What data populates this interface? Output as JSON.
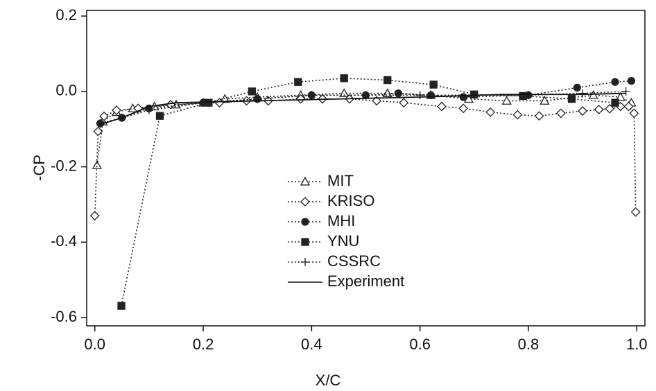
{
  "chart_data": {
    "type": "line",
    "xlabel": "X/C",
    "ylabel": "-CP",
    "xlim": [
      -0.015,
      1.015
    ],
    "ylim": [
      -0.622,
      0.215
    ],
    "xticks": [
      {
        "value": 0,
        "label": "0.0"
      },
      0.2,
      0.4,
      0.6,
      0.8,
      {
        "value": 1,
        "label": "1.0"
      }
    ],
    "yticks": [
      0.2,
      {
        "value": 0,
        "label": "0.0"
      },
      -0.2,
      -0.4,
      -0.6
    ],
    "legend": "center",
    "series": [
      {
        "name": "MIT",
        "color": "#222222",
        "marker": "triangle",
        "dash": "dotted",
        "x": [
          0.004,
          0.015,
          0.04,
          0.07,
          0.11,
          0.15,
          0.2,
          0.24,
          0.3,
          0.38,
          0.46,
          0.54,
          0.62,
          0.69,
          0.76,
          0.83,
          0.92,
          0.97,
          0.99
        ],
        "values": [
          -0.196,
          -0.08,
          -0.055,
          -0.045,
          -0.04,
          -0.035,
          -0.03,
          -0.02,
          -0.015,
          -0.01,
          -0.005,
          -0.005,
          -0.01,
          -0.02,
          -0.025,
          -0.025,
          -0.01,
          -0.015,
          -0.03
        ]
      },
      {
        "name": "KRISO",
        "color": "#222222",
        "marker": "diamond",
        "dash": "dotted",
        "x": [
          0,
          0.006,
          0.017,
          0.04,
          0.08,
          0.14,
          0.23,
          0.28,
          0.32,
          0.38,
          0.42,
          0.47,
          0.52,
          0.57,
          0.64,
          0.68,
          0.73,
          0.78,
          0.82,
          0.86,
          0.9,
          0.93,
          0.95,
          0.97,
          0.985,
          0.995,
          0.998
        ],
        "values": [
          -0.33,
          -0.106,
          -0.066,
          -0.05,
          -0.045,
          -0.035,
          -0.03,
          -0.025,
          -0.025,
          -0.02,
          -0.02,
          -0.02,
          -0.025,
          -0.03,
          -0.04,
          -0.045,
          -0.055,
          -0.062,
          -0.065,
          -0.058,
          -0.052,
          -0.048,
          -0.046,
          -0.04,
          -0.04,
          -0.058,
          -0.32
        ]
      },
      {
        "name": "MHI",
        "color": "#222222",
        "marker": "circle",
        "dash": "dotted",
        "x": [
          0.01,
          0.05,
          0.1,
          0.2,
          0.3,
          0.4,
          0.5,
          0.56,
          0.62,
          0.68,
          0.8,
          0.89,
          0.96,
          0.99
        ],
        "values": [
          -0.085,
          -0.07,
          -0.045,
          -0.03,
          -0.02,
          -0.01,
          -0.01,
          -0.005,
          -0.01,
          -0.015,
          -0.01,
          0.01,
          0.025,
          0.028
        ]
      },
      {
        "name": "YNU",
        "color": "#222222",
        "marker": "square",
        "dash": "dotted",
        "x": [
          0.049,
          0.12,
          0.21,
          0.29,
          0.375,
          0.46,
          0.54,
          0.625,
          0.7,
          0.79,
          0.88,
          0.96
        ],
        "values": [
          -0.569,
          -0.065,
          -0.03,
          0.0,
          0.025,
          0.035,
          0.03,
          0.018,
          -0.008,
          -0.012,
          -0.02,
          -0.03
        ]
      },
      {
        "name": "CSSRC",
        "color": "#222222",
        "marker": "plus",
        "dash": "dotted",
        "x": [
          0.01,
          0.05,
          0.1,
          0.2,
          0.3,
          0.4,
          0.5,
          0.6,
          0.7,
          0.8,
          0.9,
          0.98
        ],
        "values": [
          -0.085,
          -0.07,
          -0.05,
          -0.03,
          -0.02,
          -0.01,
          -0.01,
          -0.01,
          -0.01,
          -0.01,
          -0.005,
          0.0
        ]
      },
      {
        "name": "Experiment",
        "color": "#111111",
        "marker": "none",
        "dash": "solid",
        "x": [
          0.005,
          0.05,
          0.1,
          0.15,
          0.3,
          0.45,
          0.6,
          0.75,
          0.9,
          0.98
        ],
        "values": [
          -0.09,
          -0.07,
          -0.04,
          -0.03,
          -0.025,
          -0.02,
          -0.015,
          -0.008,
          -0.008,
          -0.005
        ]
      }
    ]
  }
}
